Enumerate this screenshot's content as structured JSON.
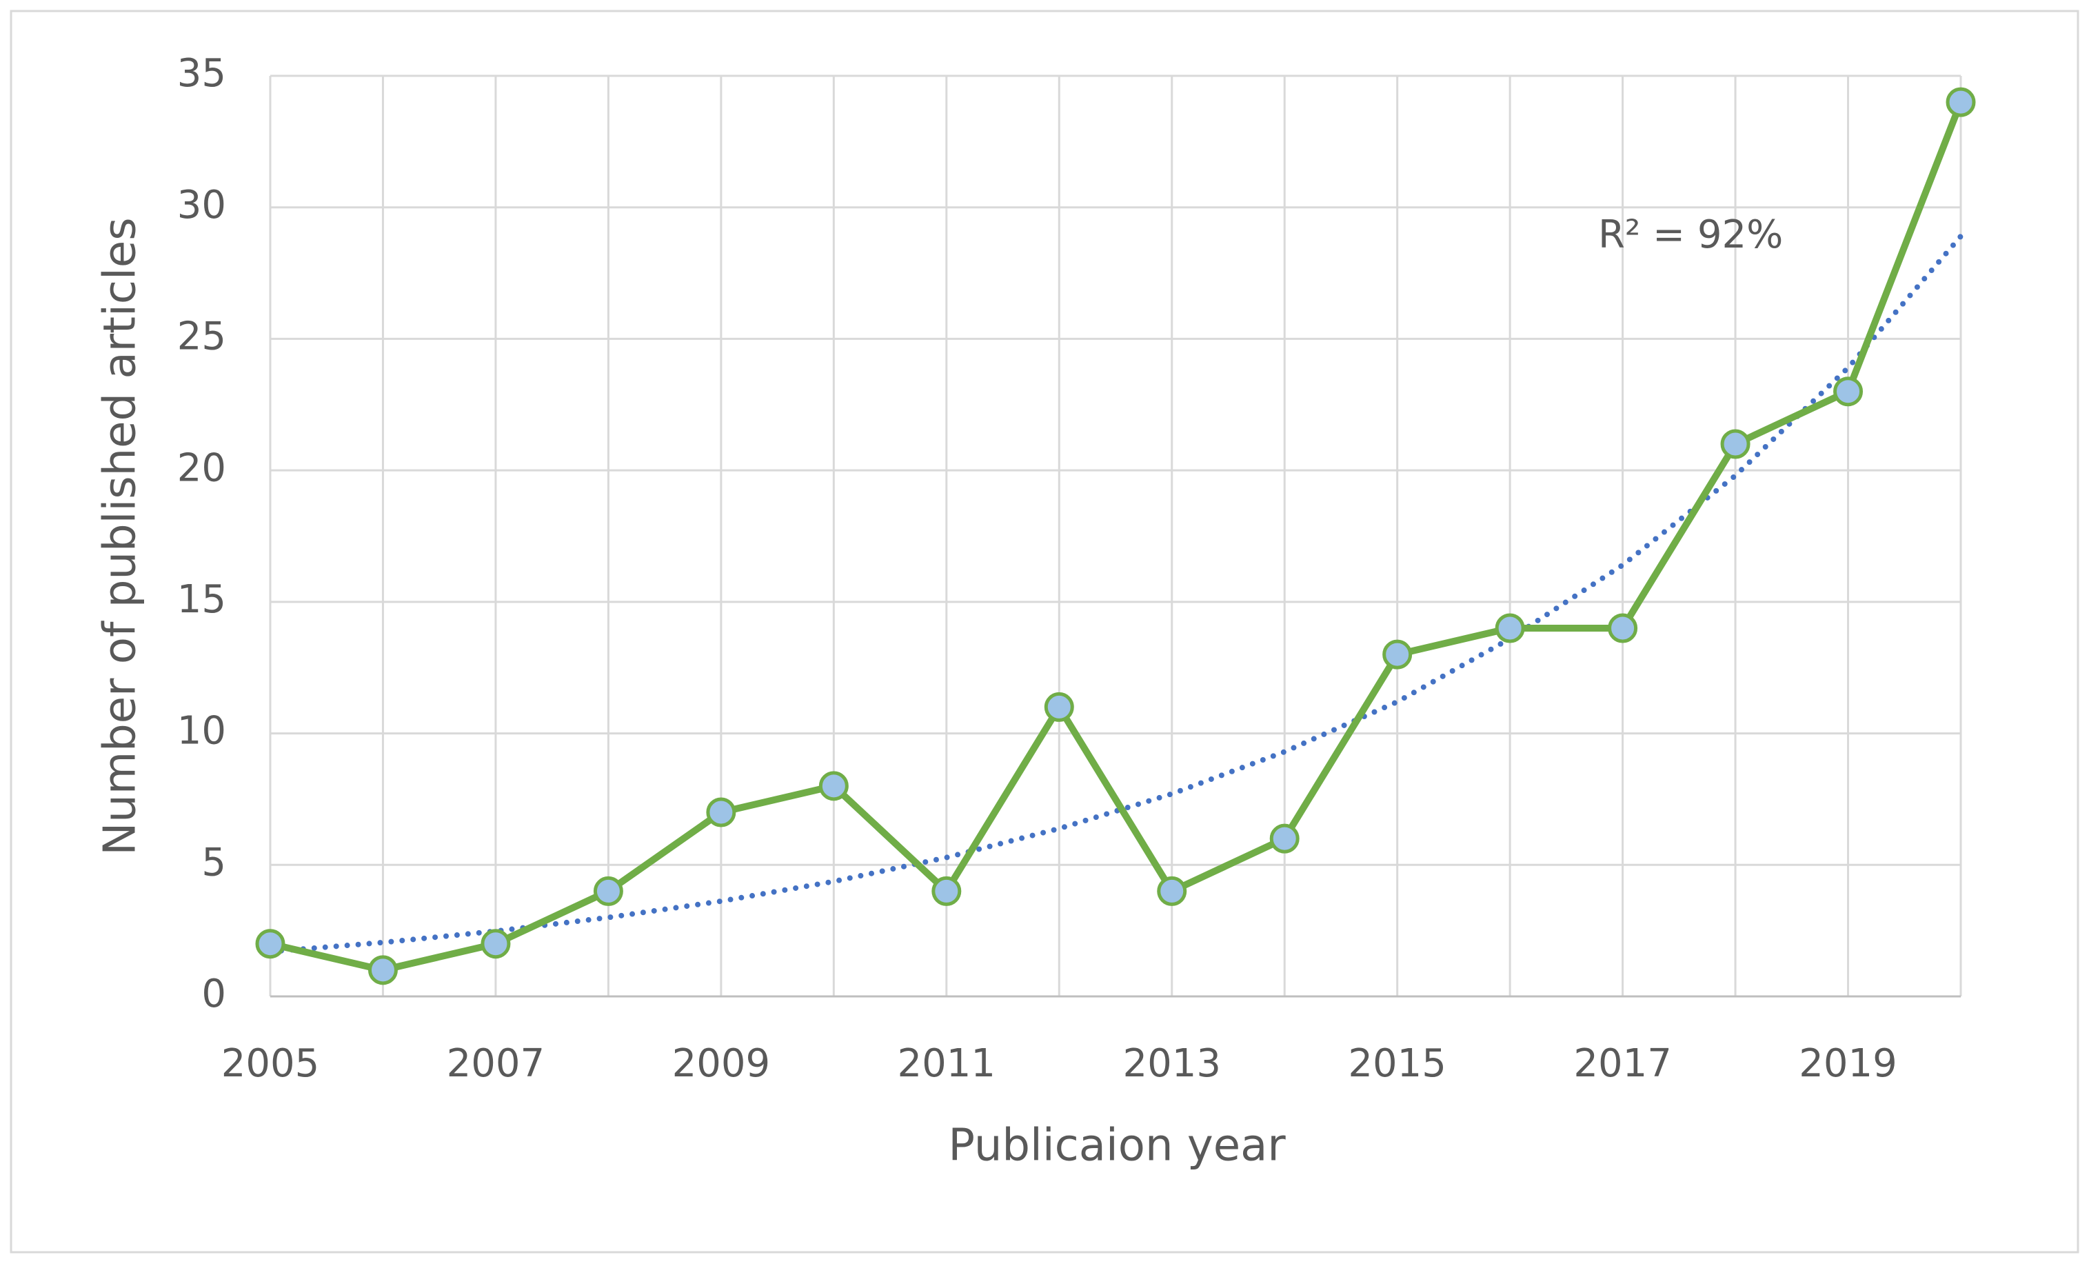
{
  "chart_data": {
    "type": "line",
    "x_label": "Publicaion year",
    "y_label": "Number of published articles",
    "categories": [
      2005,
      null,
      2007,
      null,
      2009,
      null,
      2011,
      null,
      2013,
      null,
      2015,
      null,
      2017,
      null,
      2019,
      null
    ],
    "series": [
      {
        "color": "#70ad47",
        "marker_color": "#9dc3e6",
        "values": [
          2,
          1,
          2,
          4,
          7,
          8,
          4,
          11,
          4,
          6,
          13,
          14,
          14,
          21,
          23,
          34
        ]
      }
    ],
    "trendline": {
      "type": "exponential",
      "color": "#4472c4",
      "style": "dotted",
      "values": [
        1.7,
        2.05,
        2.48,
        3.0,
        3.62,
        4.37,
        5.28,
        6.38,
        7.7,
        9.3,
        11.2,
        13.6,
        16.4,
        19.8,
        23.9,
        28.9
      ]
    },
    "annotation": "R² = 92%",
    "ylim": [
      0,
      35
    ],
    "yticks": [
      0,
      5,
      10,
      15,
      20,
      25,
      30,
      35
    ],
    "grid": true
  }
}
